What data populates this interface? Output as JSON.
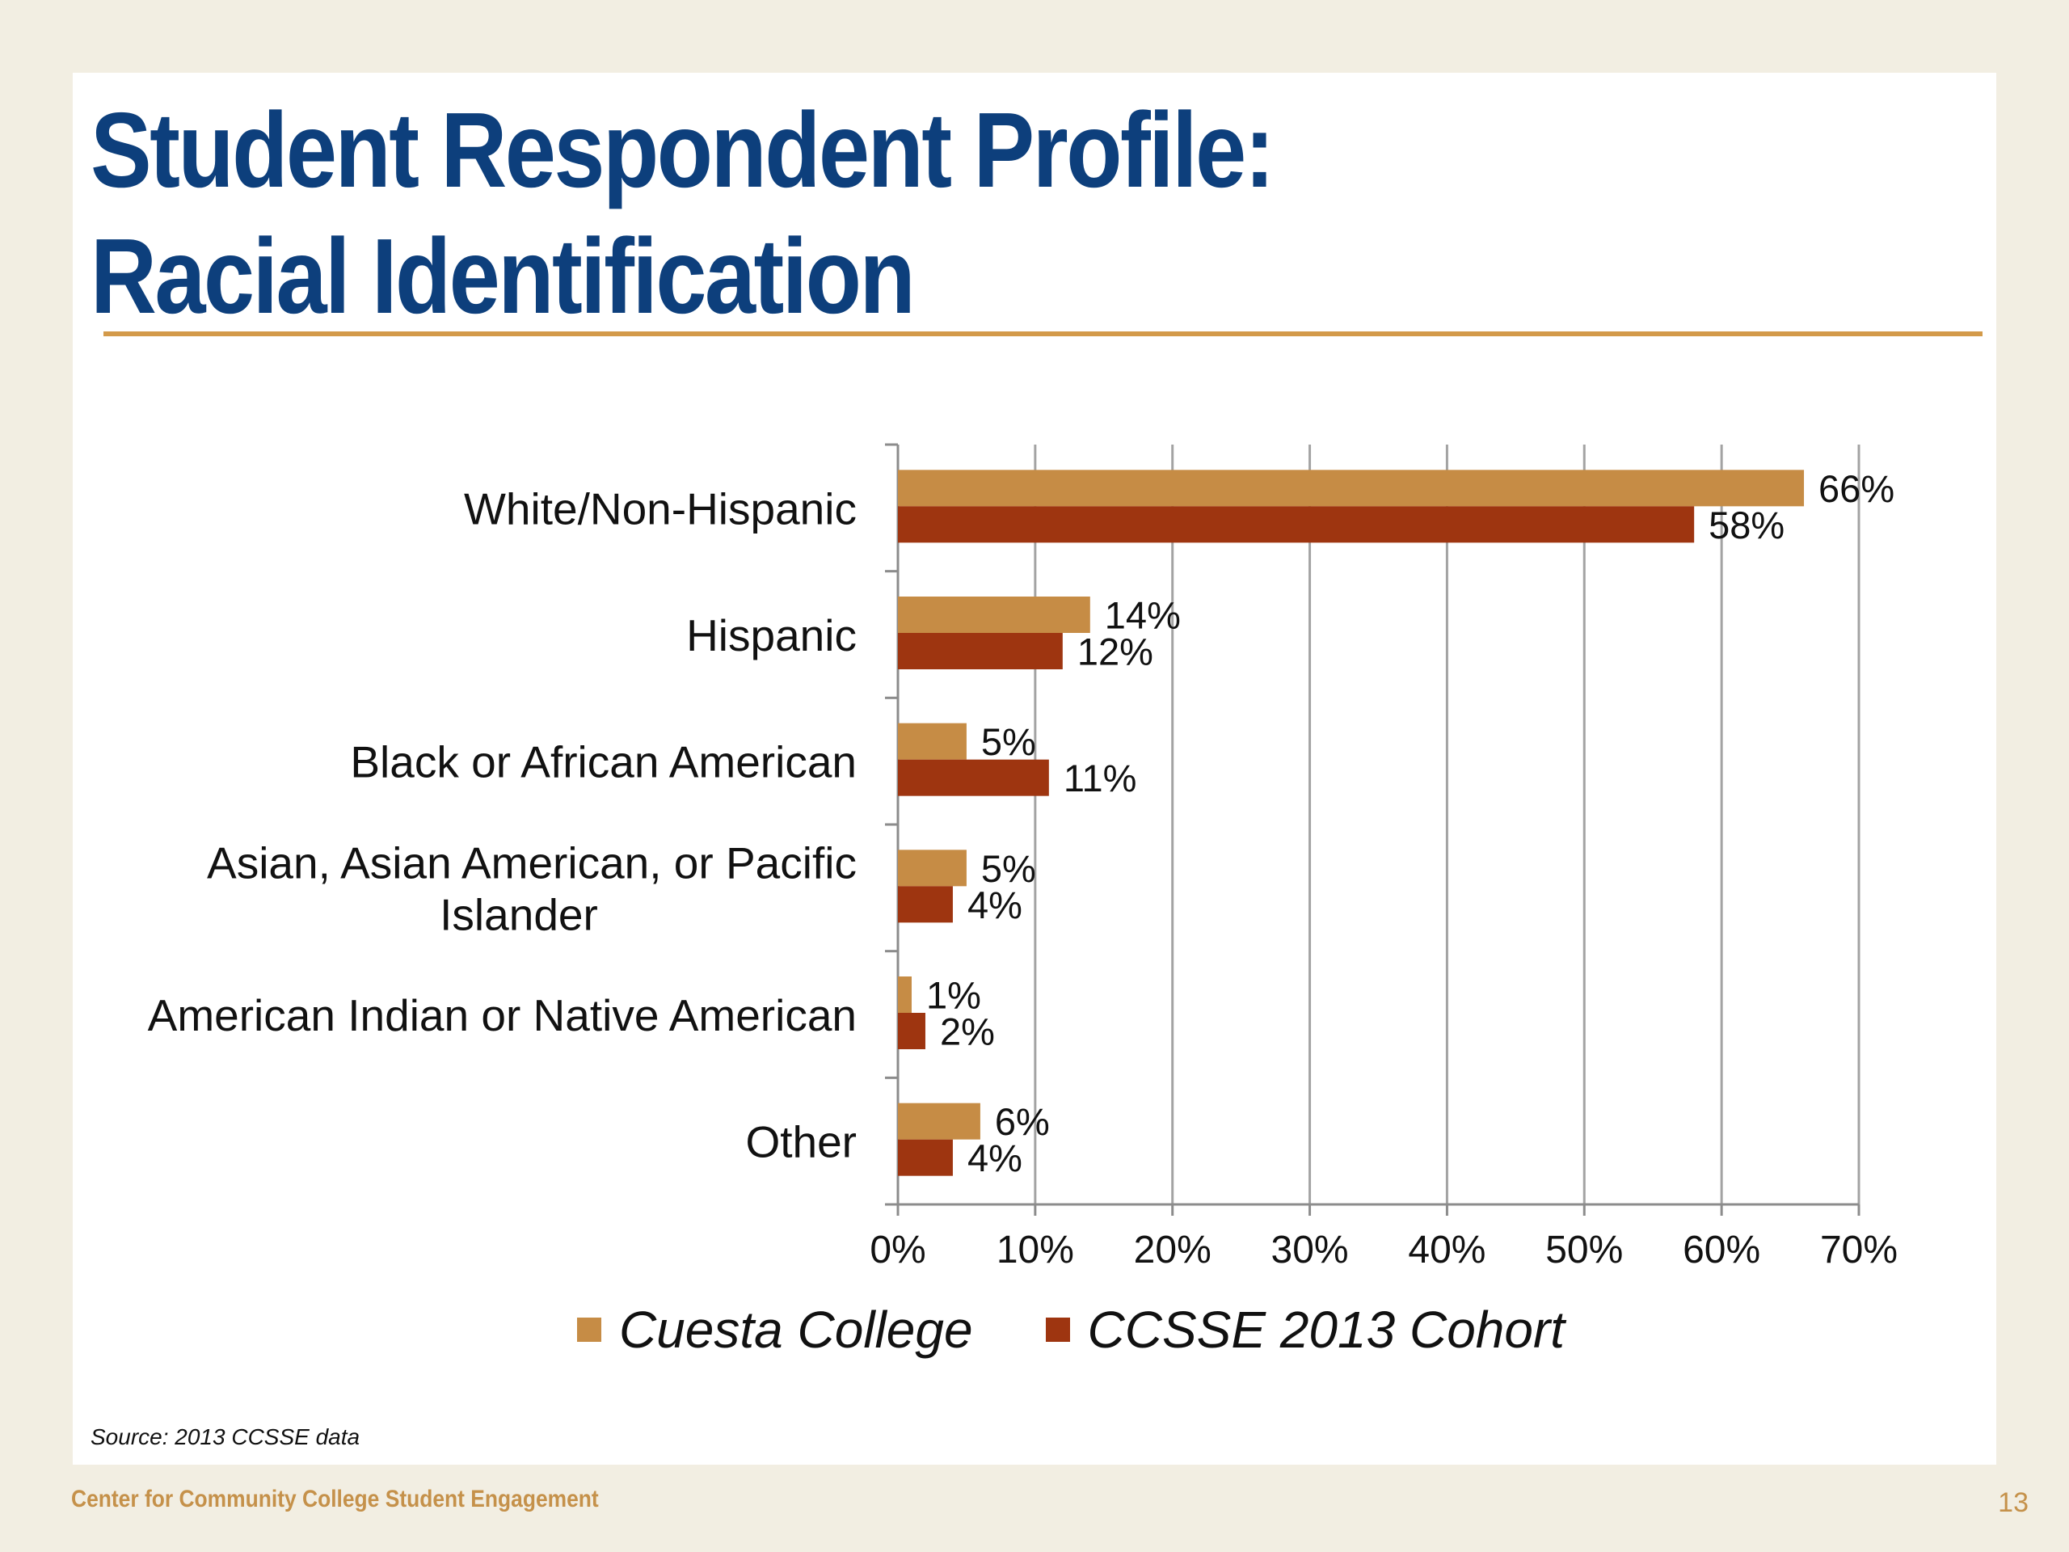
{
  "slide": {
    "title_line1": "Student Respondent Profile:",
    "title_line2": "Racial Identification",
    "source": "Source: 2013 CCSSE data",
    "footer": "Center for Community College Student Engagement",
    "page_number": "13"
  },
  "colors": {
    "accent_rule": "#d39a4a",
    "title": "#0d3f7c",
    "footer_text": "#c5914a"
  },
  "chart_data": {
    "type": "bar",
    "orientation": "horizontal",
    "categories": [
      [
        "White/Non-Hispanic"
      ],
      [
        "Hispanic"
      ],
      [
        "Black or African American"
      ],
      [
        "Asian, Asian American, or Pacific",
        "Islander"
      ],
      [
        "American Indian or Native American"
      ],
      [
        "Other"
      ]
    ],
    "series": [
      {
        "name": "Cuesta College",
        "color": "#c68c45",
        "values": [
          66,
          14,
          5,
          5,
          1,
          6
        ],
        "labels": [
          "66%",
          "14%",
          "5%",
          "5%",
          "1%",
          "6%"
        ]
      },
      {
        "name": "CCSSE 2013 Cohort",
        "color": "#9e3510",
        "values": [
          58,
          12,
          11,
          4,
          2,
          4
        ],
        "labels": [
          "58%",
          "12%",
          "11%",
          "4%",
          "2%",
          "4%"
        ]
      }
    ],
    "xlim": [
      0,
      70
    ],
    "xticks": [
      0,
      10,
      20,
      30,
      40,
      50,
      60,
      70
    ],
    "xtick_labels": [
      "0%",
      "10%",
      "20%",
      "30%",
      "40%",
      "50%",
      "60%",
      "70%"
    ],
    "grid": "vertical",
    "legend": "bottom"
  }
}
